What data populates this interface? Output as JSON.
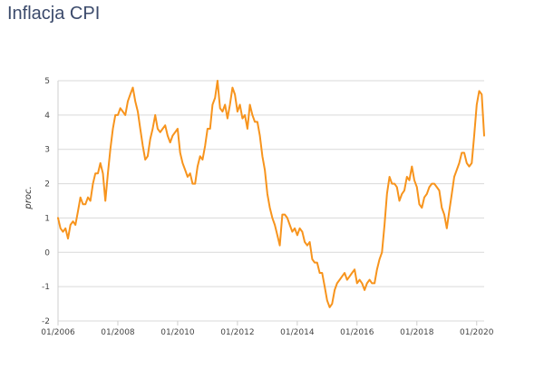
{
  "title": "Inflacja CPI",
  "chart_data": {
    "type": "line",
    "title": "Inflacja CPI",
    "xlabel": "",
    "ylabel": "proc.",
    "ylim": [
      -2,
      5
    ],
    "yticks": [
      -2,
      -1,
      0,
      1,
      2,
      3,
      4,
      5
    ],
    "xticks": [
      "01/2006",
      "01/2008",
      "01/2010",
      "01/2012",
      "01/2014",
      "01/2016",
      "01/2018",
      "01/2020"
    ],
    "xrange": [
      "01/2006",
      "04/2020"
    ],
    "grid": true,
    "color": "#f7941d",
    "series": [
      {
        "x": [
          "01/2006",
          "02/2006",
          "03/2006",
          "04/2006",
          "05/2006",
          "06/2006",
          "07/2006",
          "08/2006",
          "09/2006",
          "10/2006",
          "11/2006",
          "12/2006",
          "01/2007",
          "02/2007",
          "03/2007",
          "04/2007",
          "05/2007",
          "06/2007",
          "07/2007",
          "08/2007",
          "09/2007",
          "10/2007",
          "11/2007",
          "12/2007",
          "01/2008",
          "02/2008",
          "03/2008",
          "04/2008",
          "05/2008",
          "06/2008",
          "07/2008",
          "08/2008",
          "09/2008",
          "10/2008",
          "11/2008",
          "12/2008",
          "01/2009",
          "02/2009",
          "03/2009",
          "04/2009",
          "05/2009",
          "06/2009",
          "07/2009",
          "08/2009",
          "09/2009",
          "10/2009",
          "11/2009",
          "12/2009",
          "01/2010",
          "02/2010",
          "03/2010",
          "04/2010",
          "05/2010",
          "06/2010",
          "07/2010",
          "08/2010",
          "09/2010",
          "10/2010",
          "11/2010",
          "12/2010",
          "01/2011",
          "02/2011",
          "03/2011",
          "04/2011",
          "05/2011",
          "06/2011",
          "07/2011",
          "08/2011",
          "09/2011",
          "10/2011",
          "11/2011",
          "12/2011",
          "01/2012",
          "02/2012",
          "03/2012",
          "04/2012",
          "05/2012",
          "06/2012",
          "07/2012",
          "08/2012",
          "09/2012",
          "10/2012",
          "11/2012",
          "12/2012",
          "01/2013",
          "02/2013",
          "03/2013",
          "04/2013",
          "05/2013",
          "06/2013",
          "07/2013",
          "08/2013",
          "09/2013",
          "10/2013",
          "11/2013",
          "12/2013",
          "01/2014",
          "02/2014",
          "03/2014",
          "04/2014",
          "05/2014",
          "06/2014",
          "07/2014",
          "08/2014",
          "09/2014",
          "10/2014",
          "11/2014",
          "12/2014",
          "01/2015",
          "02/2015",
          "03/2015",
          "04/2015",
          "05/2015",
          "06/2015",
          "07/2015",
          "08/2015",
          "09/2015",
          "10/2015",
          "11/2015",
          "12/2015",
          "01/2016",
          "02/2016",
          "03/2016",
          "04/2016",
          "05/2016",
          "06/2016",
          "07/2016",
          "08/2016",
          "09/2016",
          "10/2016",
          "11/2016",
          "12/2016",
          "01/2017",
          "02/2017",
          "03/2017",
          "04/2017",
          "05/2017",
          "06/2017",
          "07/2017",
          "08/2017",
          "09/2017",
          "10/2017",
          "11/2017",
          "12/2017",
          "01/2018",
          "02/2018",
          "03/2018",
          "04/2018",
          "05/2018",
          "06/2018",
          "07/2018",
          "08/2018",
          "09/2018",
          "10/2018",
          "11/2018",
          "12/2018",
          "01/2019",
          "02/2019",
          "03/2019",
          "04/2019",
          "05/2019",
          "06/2019",
          "07/2019",
          "08/2019",
          "09/2019",
          "10/2019",
          "11/2019",
          "12/2019",
          "01/2020",
          "02/2020",
          "03/2020",
          "04/2020"
        ],
        "y": [
          1.0,
          0.7,
          0.6,
          0.7,
          0.4,
          0.8,
          0.9,
          0.8,
          1.2,
          1.6,
          1.4,
          1.4,
          1.6,
          1.5,
          2.0,
          2.3,
          2.3,
          2.6,
          2.3,
          1.5,
          2.3,
          3.0,
          3.6,
          4.0,
          4.0,
          4.2,
          4.1,
          4.0,
          4.4,
          4.6,
          4.8,
          4.4,
          4.1,
          3.6,
          3.1,
          2.7,
          2.8,
          3.3,
          3.6,
          4.0,
          3.6,
          3.5,
          3.6,
          3.7,
          3.4,
          3.2,
          3.4,
          3.5,
          3.6,
          2.9,
          2.6,
          2.4,
          2.2,
          2.3,
          2.0,
          2.0,
          2.5,
          2.8,
          2.7,
          3.1,
          3.6,
          3.6,
          4.3,
          4.5,
          5.0,
          4.2,
          4.1,
          4.3,
          3.9,
          4.3,
          4.8,
          4.6,
          4.1,
          4.3,
          3.9,
          4.0,
          3.6,
          4.3,
          4.0,
          3.8,
          3.8,
          3.4,
          2.8,
          2.4,
          1.7,
          1.3,
          1.0,
          0.8,
          0.5,
          0.2,
          1.1,
          1.1,
          1.0,
          0.8,
          0.6,
          0.7,
          0.5,
          0.7,
          0.6,
          0.3,
          0.2,
          0.3,
          -0.2,
          -0.3,
          -0.3,
          -0.6,
          -0.6,
          -1.0,
          -1.4,
          -1.6,
          -1.5,
          -1.1,
          -0.9,
          -0.8,
          -0.7,
          -0.6,
          -0.8,
          -0.7,
          -0.6,
          -0.5,
          -0.9,
          -0.8,
          -0.9,
          -1.1,
          -0.9,
          -0.8,
          -0.9,
          -0.9,
          -0.5,
          -0.2,
          0.0,
          0.8,
          1.7,
          2.2,
          2.0,
          2.0,
          1.9,
          1.5,
          1.7,
          1.8,
          2.2,
          2.1,
          2.5,
          2.1,
          1.9,
          1.4,
          1.3,
          1.6,
          1.7,
          1.9,
          2.0,
          2.0,
          1.9,
          1.8,
          1.3,
          1.1,
          0.7,
          1.2,
          1.7,
          2.2,
          2.4,
          2.6,
          2.9,
          2.9,
          2.6,
          2.5,
          2.6,
          3.4,
          4.3,
          4.7,
          4.6,
          3.4
        ]
      }
    ]
  }
}
